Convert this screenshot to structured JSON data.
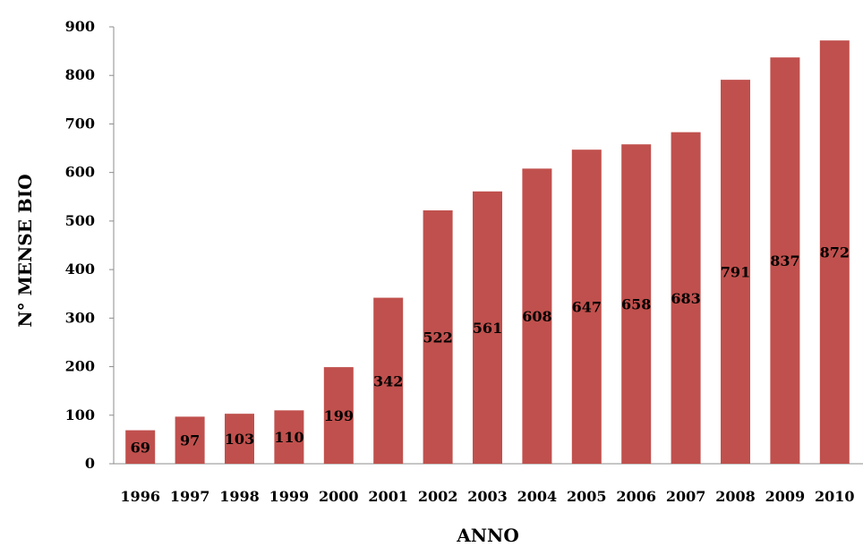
{
  "chart_data": {
    "type": "bar",
    "title": "",
    "xlabel": "ANNO",
    "ylabel": "N° MENSE BIO",
    "categories": [
      "1996",
      "1997",
      "1998",
      "1999",
      "2000",
      "2001",
      "2002",
      "2003",
      "2004",
      "2005",
      "2006",
      "2007",
      "2008",
      "2009",
      "2010"
    ],
    "values": [
      69,
      97,
      103,
      110,
      199,
      342,
      522,
      561,
      608,
      647,
      658,
      683,
      791,
      837,
      872
    ],
    "ylim": [
      0,
      900
    ],
    "yticks": [
      0,
      100,
      200,
      300,
      400,
      500,
      600,
      700,
      800,
      900
    ],
    "grid": false,
    "legend": "none",
    "bar_color": "#C0504D"
  }
}
